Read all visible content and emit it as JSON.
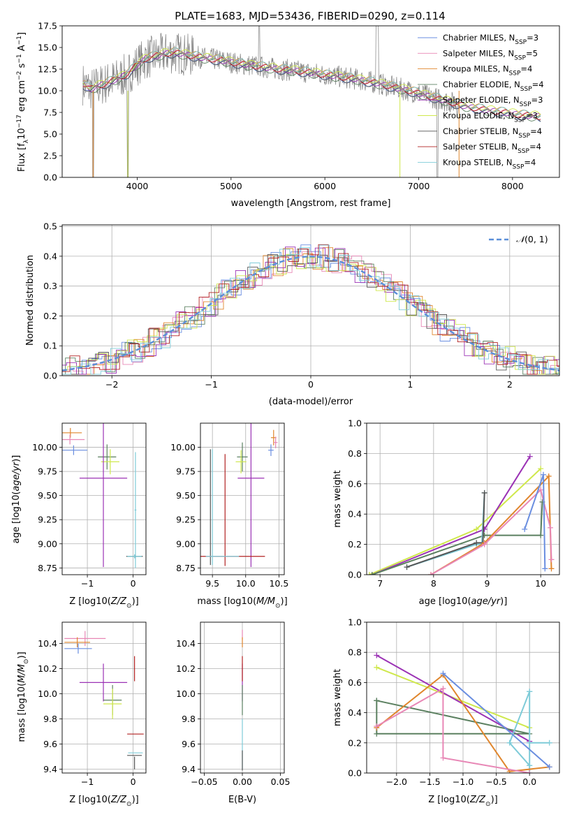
{
  "figure": {
    "title": "PLATE=1683, MJD=53436, FIBERID=0290, z=0.114"
  },
  "colors": {
    "cM": "#6a8ee0",
    "sM": "#e887b6",
    "kM": "#e0862d",
    "cE": "#5b8060",
    "sE": "#9b32b5",
    "kE": "#cfe84c",
    "cS": "#555555",
    "sS": "#b22222",
    "kS": "#7ecbd8",
    "data": "#808080",
    "norm": "#5b8fd9",
    "grid": "#b0b0b0"
  },
  "models": [
    {
      "key": "cM",
      "label": "Chabrier MILES, N",
      "sub": "SSP",
      "n": "=3"
    },
    {
      "key": "sM",
      "label": "Salpeter MILES, N",
      "sub": "SSP",
      "n": "=5"
    },
    {
      "key": "kM",
      "label": "Kroupa MILES, N",
      "sub": "SSP",
      "n": "=4"
    },
    {
      "key": "cE",
      "label": "Chabrier ELODIE, N",
      "sub": "SSP",
      "n": "=4"
    },
    {
      "key": "sE",
      "label": "Salpeter ELODIE, N",
      "sub": "SSP",
      "n": "=3"
    },
    {
      "key": "kE",
      "label": "Kroupa ELODIE, N",
      "sub": "SSP",
      "n": "=3"
    },
    {
      "key": "cS",
      "label": "Chabrier STELIB, N",
      "sub": "SSP",
      "n": "=4"
    },
    {
      "key": "sS",
      "label": "Salpeter STELIB, N",
      "sub": "SSP",
      "n": "=4"
    },
    {
      "key": "kS",
      "label": "Kroupa STELIB, N",
      "sub": "SSP",
      "n": "=4"
    }
  ],
  "chart_data": [
    {
      "id": "spectrum",
      "type": "line",
      "xlabel": "wavelength [Angstrom, rest frame]",
      "ylabel": "Flux [fλ10⁻¹⁷ erg cm⁻² s⁻¹ A⁻¹]",
      "xlim": [
        3200,
        8500
      ],
      "ylim": [
        0,
        17.5
      ],
      "xticks": [
        4000,
        5000,
        6000,
        7000,
        8000
      ],
      "yticks": [
        0.0,
        2.5,
        5.0,
        7.5,
        10.0,
        12.5,
        15.0,
        17.5
      ],
      "grid": false,
      "legend": "upper right",
      "continuum": {
        "x": [
          3420,
          3500,
          3600,
          3700,
          3800,
          3900,
          4000,
          4100,
          4200,
          4300,
          4400,
          4500,
          4700,
          4900,
          5100,
          5300,
          5500,
          5700,
          5900,
          6100,
          6300,
          6500,
          6700,
          6900,
          7100,
          7300,
          7500,
          7700,
          7900,
          8100,
          8300
        ],
        "y": [
          10.8,
          10.2,
          10.6,
          11.0,
          11.4,
          12.0,
          13.0,
          13.8,
          14.0,
          14.3,
          14.4,
          14.2,
          13.8,
          13.5,
          13.1,
          12.8,
          12.5,
          12.3,
          12.0,
          11.7,
          11.4,
          11.0,
          10.5,
          10.0,
          9.4,
          8.8,
          8.2,
          7.8,
          7.5,
          7.2,
          7.0
        ]
      }
    },
    {
      "id": "residuals",
      "type": "histogram",
      "xlabel": "(data-model)/error",
      "ylabel": "Normed distribution",
      "xlim": [
        -2.5,
        2.5
      ],
      "ylim": [
        0,
        0.505
      ],
      "xticks": [
        -2,
        -1,
        0,
        1,
        2
      ],
      "yticks": [
        0.0,
        0.1,
        0.2,
        0.3,
        0.4,
        0.5
      ],
      "grid": true,
      "legend": "upper right",
      "legend_label": "N(0,1)"
    },
    {
      "id": "age-Z",
      "type": "scatter",
      "xlabel": "Z [log10(Z/Z⊙)]",
      "ylabel": "age  [log10(age/yr)]",
      "xlim": [
        -1.55,
        0.28
      ],
      "ylim": [
        8.68,
        10.25
      ],
      "xticks": [
        -1,
        0
      ],
      "yticks": [
        8.75,
        9.0,
        9.25,
        9.5,
        9.75,
        10.0
      ],
      "points": [
        {
          "m": "kM",
          "x": -1.37,
          "y": 10.15,
          "xe": 0.25,
          "ye": 0.05
        },
        {
          "m": "sM",
          "x": -1.38,
          "y": 10.08,
          "xe": 0.32,
          "ye": 0.05
        },
        {
          "m": "cM",
          "x": -1.3,
          "y": 9.97,
          "xe": 0.3,
          "ye": 0.05
        },
        {
          "m": "cE",
          "x": -0.57,
          "y": 9.9,
          "xe": 0.2,
          "ye": 0.13
        },
        {
          "m": "kE",
          "x": -0.5,
          "y": 9.85,
          "xe": 0.2,
          "ye": 0.13
        },
        {
          "m": "sE",
          "x": -0.65,
          "y": 9.68,
          "xe": 0.52,
          "ye": 0.92
        },
        {
          "m": "kS",
          "x": 0.05,
          "y": 9.35,
          "xe": 0.02,
          "ye": 0.6
        },
        {
          "m": "cS",
          "x": 0.03,
          "y": 8.87,
          "xe": 0.18,
          "ye": 0.02
        },
        {
          "m": "kS",
          "x": 0.03,
          "y": 8.87,
          "xe": 0.16,
          "ye": 0.02
        }
      ]
    },
    {
      "id": "age-mass",
      "type": "scatter",
      "xlabel": "mass [log10(M/M⊙)]",
      "ylabel": "",
      "xlim": [
        9.32,
        10.58
      ],
      "ylim": [
        8.68,
        10.25
      ],
      "xticks": [
        9.5,
        10.0,
        10.5
      ],
      "yticks": [
        8.75,
        9.0,
        9.25,
        9.5,
        9.75,
        10.0
      ],
      "points": [
        {
          "m": "kM",
          "x": 10.42,
          "y": 10.1,
          "xe": 0.04,
          "ye": 0.08
        },
        {
          "m": "sM",
          "x": 10.45,
          "y": 10.05,
          "xe": 0.03,
          "ye": 0.06
        },
        {
          "m": "cM",
          "x": 10.38,
          "y": 9.97,
          "xe": 0.04,
          "ye": 0.06
        },
        {
          "m": "cE",
          "x": 9.95,
          "y": 9.9,
          "xe": 0.08,
          "ye": 0.15
        },
        {
          "m": "kE",
          "x": 9.93,
          "y": 9.85,
          "xe": 0.08,
          "ye": 0.12
        },
        {
          "m": "sE",
          "x": 10.08,
          "y": 9.68,
          "xe": 0.2,
          "ye": 0.92
        },
        {
          "m": "sS",
          "x": 9.69,
          "y": 9.35,
          "xe": 0.0,
          "ye": 0.58
        },
        {
          "m": "sS",
          "x": 9.69,
          "y": 8.87,
          "xe": 0.6,
          "ye": 0.0
        },
        {
          "m": "cS",
          "x": 9.47,
          "y": 9.38,
          "xe": 0.0,
          "ye": 0.6
        },
        {
          "m": "kS",
          "x": 9.5,
          "y": 9.38,
          "xe": 0.0,
          "ye": 0.6
        },
        {
          "m": "kS",
          "x": 9.65,
          "y": 8.87,
          "xe": 0.25,
          "ye": 0.0
        }
      ]
    },
    {
      "id": "weight-age",
      "type": "line",
      "xlabel": "age  [log10(age/yr)]",
      "ylabel": "mass weight",
      "xlim": [
        6.75,
        10.35
      ],
      "ylim": [
        0,
        1.0
      ],
      "xticks": [
        7,
        8,
        9,
        10
      ],
      "yticks": [
        0.0,
        0.2,
        0.4,
        0.6,
        0.8,
        1.0
      ],
      "series": [
        {
          "m": "kE",
          "x": [
            6.8,
            8.8,
            10.0
          ],
          "y": [
            0.0,
            0.3,
            0.7
          ]
        },
        {
          "m": "sE",
          "x": [
            6.85,
            8.95,
            9.8
          ],
          "y": [
            0.0,
            0.3,
            0.78
          ]
        },
        {
          "m": "cE",
          "x": [
            6.85,
            8.95,
            10.0,
            10.03
          ],
          "y": [
            0.0,
            0.26,
            0.26,
            0.48
          ]
        },
        {
          "m": "kS",
          "x": [
            7.5,
            8.8,
            8.9,
            8.95
          ],
          "y": [
            0.05,
            0.2,
            0.2,
            0.54
          ]
        },
        {
          "m": "cS",
          "x": [
            7.5,
            8.8,
            8.92,
            8.95
          ],
          "y": [
            0.05,
            0.21,
            0.21,
            0.54
          ]
        },
        {
          "m": "kM",
          "x": [
            7.95,
            8.95,
            10.15,
            10.2
          ],
          "y": [
            0.0,
            0.21,
            0.65,
            0.04
          ]
        },
        {
          "m": "sM",
          "x": [
            7.95,
            8.95,
            10.0,
            10.18,
            10.2
          ],
          "y": [
            0.0,
            0.2,
            0.56,
            0.31,
            0.1
          ]
        },
        {
          "m": "cM",
          "x": [
            9.7,
            10.05,
            10.08
          ],
          "y": [
            0.3,
            0.66,
            0.04
          ]
        }
      ]
    },
    {
      "id": "mass-Z",
      "type": "scatter",
      "xlabel": "Z [log10(Z/Z⊙)]",
      "ylabel": "mass [log10(M/M⊙)]",
      "xlim": [
        -1.55,
        0.28
      ],
      "ylim": [
        9.37,
        10.57
      ],
      "xticks": [
        -1,
        0
      ],
      "yticks": [
        9.4,
        9.6,
        9.8,
        10.0,
        10.2,
        10.4
      ],
      "points": [
        {
          "m": "sM",
          "x": -1.05,
          "y": 10.44,
          "xe": 0.45,
          "ye": 0.06
        },
        {
          "m": "kM",
          "x": -1.22,
          "y": 10.41,
          "xe": 0.28,
          "ye": 0.04
        },
        {
          "m": "cM",
          "x": -1.2,
          "y": 10.36,
          "xe": 0.3,
          "ye": 0.04
        },
        {
          "m": "sE",
          "x": -0.65,
          "y": 10.09,
          "xe": 0.52,
          "ye": 0.15
        },
        {
          "m": "cE",
          "x": -0.45,
          "y": 9.95,
          "xe": 0.2,
          "ye": 0.12
        },
        {
          "m": "kE",
          "x": -0.45,
          "y": 9.92,
          "xe": 0.2,
          "ye": 0.12
        },
        {
          "m": "sS",
          "x": 0.03,
          "y": 10.2,
          "xe": 0.0,
          "ye": 0.1
        },
        {
          "m": "sS",
          "x": 0.05,
          "y": 9.68,
          "xe": 0.18,
          "ye": 0.0
        },
        {
          "m": "cS",
          "x": 0.03,
          "y": 9.51,
          "xe": 0.16,
          "ye": 0.0
        },
        {
          "m": "kS",
          "x": 0.05,
          "y": 9.53,
          "xe": 0.16,
          "ye": 0.0
        },
        {
          "m": "cS",
          "x": 0.03,
          "y": 9.45,
          "xe": 0.0,
          "ye": 0.05
        }
      ]
    },
    {
      "id": "mass-EBV",
      "type": "scatter",
      "xlabel": "E(B-V)",
      "ylabel": "",
      "xlim": [
        -0.055,
        0.055
      ],
      "ylim": [
        9.37,
        10.57
      ],
      "xticks": [
        -0.05,
        0.0,
        0.05
      ],
      "yticks": [
        9.4,
        9.6,
        9.8,
        10.0,
        10.2,
        10.4
      ],
      "points": [
        {
          "m": "sM",
          "x": 0.0,
          "y": 10.47,
          "xe": 0.0,
          "ye": 0.04
        },
        {
          "m": "kM",
          "x": 0.0,
          "y": 10.41,
          "xe": 0.0,
          "ye": 0.04
        },
        {
          "m": "sE",
          "x": 0.0,
          "y": 10.09,
          "xe": 0.0,
          "ye": 0.15
        },
        {
          "m": "cE",
          "x": 0.0,
          "y": 9.95,
          "xe": 0.0,
          "ye": 0.12
        },
        {
          "m": "sS",
          "x": 0.0,
          "y": 10.2,
          "xe": 0.0,
          "ye": 0.1
        },
        {
          "m": "kS",
          "x": 0.0,
          "y": 9.6,
          "xe": 0.0,
          "ye": 0.2
        },
        {
          "m": "cS",
          "x": 0.0,
          "y": 9.47,
          "xe": 0.0,
          "ye": 0.08
        }
      ]
    },
    {
      "id": "weight-Z",
      "type": "line",
      "xlabel": "Z [log10(Z/Z⊙)]",
      "ylabel": "mass weight",
      "xlim": [
        -2.45,
        0.45
      ],
      "ylim": [
        0,
        1.0
      ],
      "xticks": [
        -2.0,
        -1.5,
        -1.0,
        -0.5,
        0.0
      ],
      "yticks": [
        0.0,
        0.2,
        0.4,
        0.6,
        0.8,
        1.0
      ],
      "series": [
        {
          "m": "kE",
          "x": [
            -2.3,
            0.0
          ],
          "y": [
            0.7,
            0.3
          ]
        },
        {
          "m": "sE",
          "x": [
            -2.3,
            0.0
          ],
          "y": [
            0.78,
            0.21
          ]
        },
        {
          "m": "cE",
          "x": [
            -2.3,
            0.0,
            -2.3,
            -2.3
          ],
          "y": [
            0.48,
            0.26,
            0.26,
            0.48
          ]
        },
        {
          "m": "kS",
          "x": [
            0.0,
            0.0,
            0.0,
            -0.3,
            0.0,
            0.0,
            0.0,
            0.0,
            0.0,
            0.3
          ],
          "y": [
            0.2,
            0.0,
            0.54,
            0.2,
            0.05,
            0.05,
            0.54,
            0.54,
            0.2,
            0.2
          ]
        },
        {
          "m": "kM",
          "x": [
            -2.3,
            -1.3,
            -0.3,
            0.3
          ],
          "y": [
            0.3,
            0.65,
            0.01,
            0.04
          ]
        },
        {
          "m": "sM",
          "x": [
            -2.3,
            -1.3,
            -1.3,
            0.0
          ],
          "y": [
            0.31,
            0.56,
            0.1,
            0.0
          ]
        },
        {
          "m": "cM",
          "x": [
            -1.3,
            0.3
          ],
          "y": [
            0.66,
            0.04
          ]
        }
      ]
    }
  ]
}
